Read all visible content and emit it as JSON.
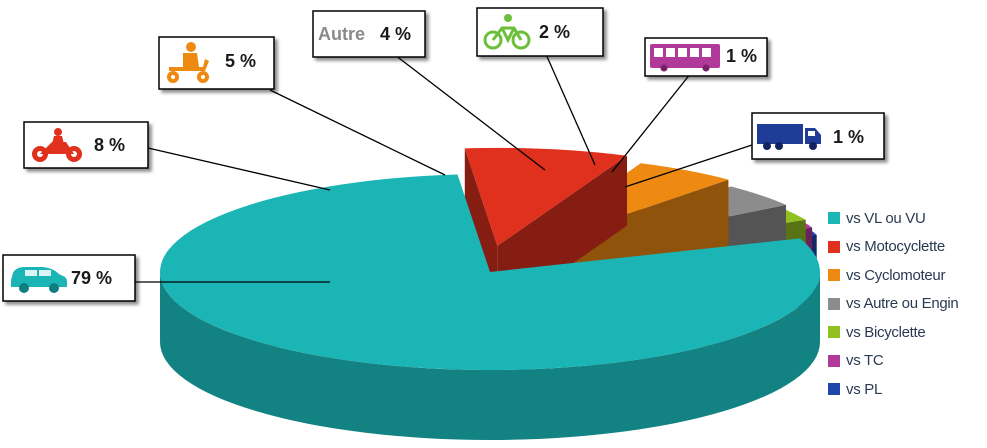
{
  "chart_data": {
    "type": "pie",
    "categories": [
      "vs VL ou VU",
      "vs Motocyclette",
      "vs Cyclomoteur",
      "vs Autre ou Engin",
      "vs Bicyclette",
      "vs TC",
      "vs PL"
    ],
    "values": [
      79,
      8,
      5,
      4,
      2,
      1,
      1
    ],
    "labels": [
      "79 %",
      "8 %",
      "5 %",
      "4 %",
      "2 %",
      "1 %",
      "1 %"
    ],
    "colors": [
      "#1bb5b5",
      "#e0301e",
      "#ee8a12",
      "#8c8c8c",
      "#92c01f",
      "#b0399a",
      "#1f46a8"
    ],
    "icons": [
      "car-icon",
      "motorcycle-icon",
      "scooter-icon",
      "",
      "bicycle-icon",
      "bus-icon",
      "truck-icon"
    ],
    "callout_prefix": {
      "autre": "Autre"
    },
    "legend_position": "right",
    "style": "3d-exploded"
  }
}
